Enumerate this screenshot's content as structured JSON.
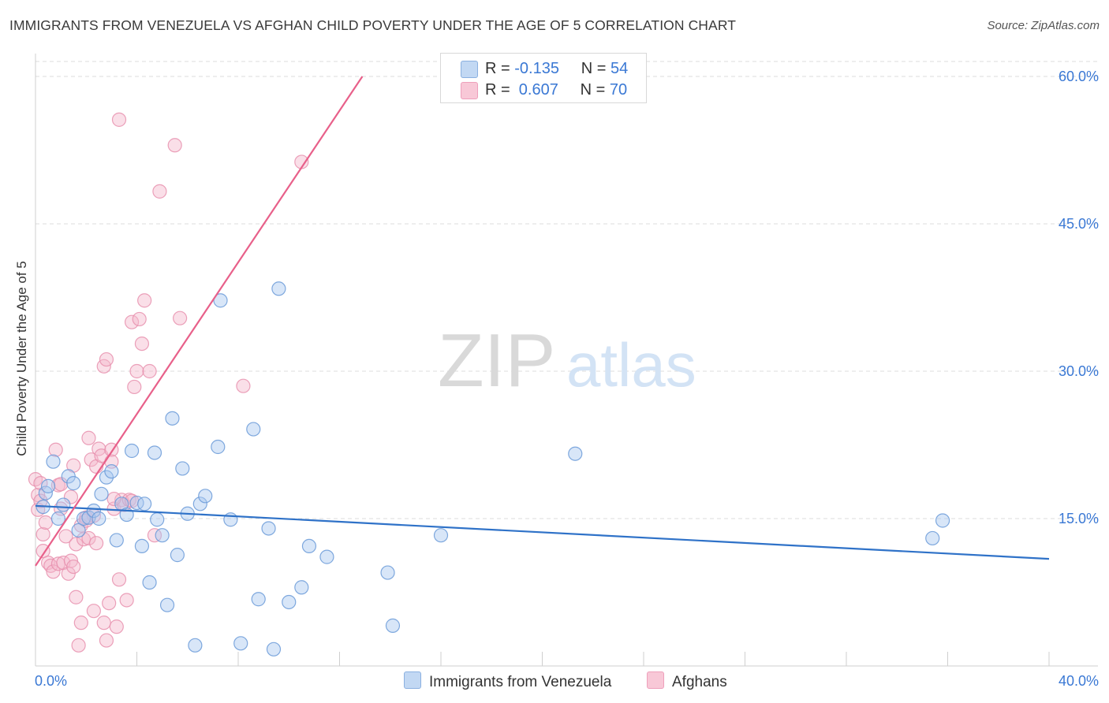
{
  "title": "IMMIGRANTS FROM VENEZUELA VS AFGHAN CHILD POVERTY UNDER THE AGE OF 5 CORRELATION CHART",
  "source": "Source: ZipAtlas.com",
  "watermark": {
    "zip": "ZIP",
    "atlas": "atlas"
  },
  "legend": {
    "series1": {
      "r_label": "R =",
      "r_value": "-0.135",
      "n_label": "N =",
      "n_value": "54"
    },
    "series2": {
      "r_label": "R =",
      "r_value": " 0.607",
      "n_label": "N =",
      "n_value": "70"
    }
  },
  "colors": {
    "blue_fill": "#a8c8f0",
    "blue_stroke": "#6a9ad8",
    "blue_line": "#2f72c8",
    "pink_fill": "#f5b8cb",
    "pink_stroke": "#e890ae",
    "pink_line": "#e8608a",
    "tick_text": "#3a78d4",
    "grid": "#dcdcdc"
  },
  "chart_data": {
    "type": "scatter",
    "title": "IMMIGRANTS FROM VENEZUELA VS AFGHAN CHILD POVERTY UNDER THE AGE OF 5 CORRELATION CHART",
    "xlabel": "",
    "ylabel": "Child Poverty Under the Age of 5",
    "xlim": [
      0,
      40
    ],
    "ylim": [
      0,
      64
    ],
    "x_tick_labels": [
      {
        "value": 0,
        "label": "0.0%"
      },
      {
        "value": 40,
        "label": "40.0%"
      }
    ],
    "y_tick_labels": [
      {
        "value": 15,
        "label": "15.0%"
      },
      {
        "value": 30,
        "label": "30.0%"
      },
      {
        "value": 45,
        "label": "45.0%"
      },
      {
        "value": 60,
        "label": "60.0%"
      }
    ],
    "x_minor_ticks": [
      4,
      8,
      12,
      16,
      20,
      24,
      28,
      32,
      36,
      40
    ],
    "grid": true,
    "series": [
      {
        "name": "Immigrants from Venezuela",
        "color": "blue",
        "trend": {
          "x": [
            0,
            40
          ],
          "y": [
            16.3,
            10.9
          ]
        },
        "points": [
          [
            0.3,
            16.2
          ],
          [
            0.4,
            17.6
          ],
          [
            0.5,
            18.3
          ],
          [
            0.7,
            20.8
          ],
          [
            0.9,
            15.0
          ],
          [
            1.1,
            16.4
          ],
          [
            1.3,
            19.3
          ],
          [
            1.5,
            18.6
          ],
          [
            1.7,
            13.8
          ],
          [
            1.9,
            15.0
          ],
          [
            2.1,
            15.1
          ],
          [
            2.3,
            15.8
          ],
          [
            2.5,
            15.0
          ],
          [
            2.6,
            17.5
          ],
          [
            2.8,
            19.2
          ],
          [
            3.0,
            19.8
          ],
          [
            3.2,
            12.8
          ],
          [
            3.4,
            16.5
          ],
          [
            3.6,
            15.4
          ],
          [
            3.8,
            21.9
          ],
          [
            4.0,
            16.6
          ],
          [
            4.2,
            12.2
          ],
          [
            4.3,
            16.5
          ],
          [
            4.5,
            8.5
          ],
          [
            4.7,
            21.7
          ],
          [
            4.8,
            14.9
          ],
          [
            5.0,
            13.3
          ],
          [
            5.2,
            6.2
          ],
          [
            5.4,
            25.2
          ],
          [
            5.6,
            11.3
          ],
          [
            5.8,
            20.1
          ],
          [
            6.0,
            15.5
          ],
          [
            6.3,
            2.1
          ],
          [
            6.5,
            16.5
          ],
          [
            6.7,
            17.3
          ],
          [
            7.2,
            22.3
          ],
          [
            7.3,
            37.2
          ],
          [
            7.7,
            14.9
          ],
          [
            8.1,
            2.3
          ],
          [
            8.6,
            24.1
          ],
          [
            8.8,
            6.8
          ],
          [
            9.2,
            14.0
          ],
          [
            9.4,
            1.7
          ],
          [
            9.6,
            38.4
          ],
          [
            10.0,
            6.5
          ],
          [
            10.5,
            8.0
          ],
          [
            10.8,
            12.2
          ],
          [
            11.5,
            11.1
          ],
          [
            13.9,
            9.5
          ],
          [
            14.1,
            4.1
          ],
          [
            16.0,
            13.3
          ],
          [
            21.3,
            21.6
          ],
          [
            35.4,
            13.0
          ],
          [
            35.8,
            14.8
          ]
        ]
      },
      {
        "name": "Afghans",
        "color": "pink",
        "trend": {
          "x": [
            0,
            12.9
          ],
          "y": [
            10.2,
            60.0
          ]
        },
        "points": [
          [
            0.0,
            19.0
          ],
          [
            0.1,
            17.4
          ],
          [
            0.1,
            15.9
          ],
          [
            0.2,
            18.6
          ],
          [
            0.3,
            11.7
          ],
          [
            0.3,
            13.4
          ],
          [
            0.4,
            14.6
          ],
          [
            0.5,
            10.5
          ],
          [
            0.6,
            10.2
          ],
          [
            0.7,
            9.6
          ],
          [
            0.8,
            22.0
          ],
          [
            0.9,
            18.4
          ],
          [
            0.9,
            10.4
          ],
          [
            1.0,
            18.5
          ],
          [
            1.1,
            10.5
          ],
          [
            1.2,
            13.2
          ],
          [
            1.3,
            9.4
          ],
          [
            1.4,
            10.7
          ],
          [
            1.4,
            17.2
          ],
          [
            1.5,
            10.1
          ],
          [
            1.5,
            20.4
          ],
          [
            1.6,
            12.4
          ],
          [
            1.6,
            7.0
          ],
          [
            1.7,
            2.1
          ],
          [
            1.8,
            14.3
          ],
          [
            1.8,
            4.4
          ],
          [
            1.9,
            12.9
          ],
          [
            2.0,
            15.1
          ],
          [
            2.1,
            13.0
          ],
          [
            2.1,
            23.2
          ],
          [
            2.2,
            21.0
          ],
          [
            2.3,
            5.6
          ],
          [
            2.3,
            15.3
          ],
          [
            2.4,
            12.5
          ],
          [
            2.4,
            20.3
          ],
          [
            2.5,
            22.1
          ],
          [
            2.6,
            21.4
          ],
          [
            2.7,
            30.5
          ],
          [
            2.7,
            4.4
          ],
          [
            2.8,
            31.2
          ],
          [
            2.8,
            2.6
          ],
          [
            2.9,
            6.4
          ],
          [
            3.0,
            22.0
          ],
          [
            3.0,
            20.8
          ],
          [
            3.1,
            16.0
          ],
          [
            3.2,
            4.0
          ],
          [
            3.3,
            55.6
          ],
          [
            3.3,
            8.8
          ],
          [
            3.4,
            16.9
          ],
          [
            3.5,
            16.4
          ],
          [
            3.6,
            6.7
          ],
          [
            3.7,
            16.9
          ],
          [
            3.8,
            16.8
          ],
          [
            3.8,
            35.0
          ],
          [
            3.9,
            28.4
          ],
          [
            4.0,
            30.0
          ],
          [
            4.1,
            35.3
          ],
          [
            4.2,
            32.8
          ],
          [
            4.3,
            37.2
          ],
          [
            4.5,
            30.0
          ],
          [
            4.7,
            13.3
          ],
          [
            4.9,
            48.3
          ],
          [
            5.5,
            53.0
          ],
          [
            5.7,
            35.4
          ],
          [
            8.2,
            28.5
          ],
          [
            10.5,
            51.3
          ],
          [
            0.2,
            16.8
          ],
          [
            1.0,
            16.0
          ],
          [
            2.0,
            14.8
          ],
          [
            3.1,
            17.0
          ]
        ]
      }
    ]
  },
  "bottom_legend": {
    "item1": "Immigrants from Venezuela",
    "item2": "Afghans"
  }
}
